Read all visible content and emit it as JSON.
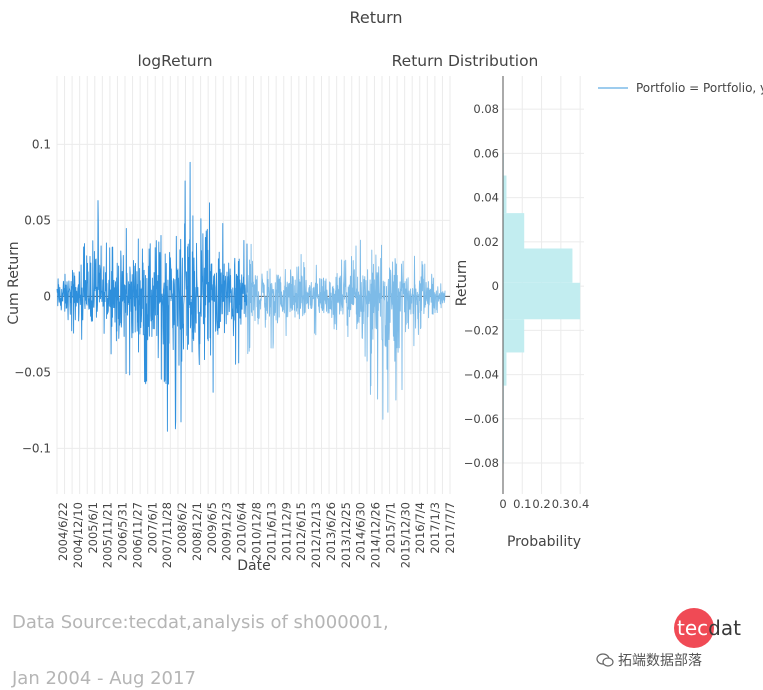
{
  "chart_data": {
    "title": "Return",
    "line_panel": {
      "type": "line",
      "title": "logReturn",
      "xlabel": "Date",
      "ylabel": "Cum Return",
      "ylim": [
        -0.13,
        0.145
      ],
      "yticks": [
        -0.1,
        -0.05,
        0,
        0.05,
        0.1
      ],
      "ytick_labels": [
        "−0.1",
        "−0.05",
        "0",
        "0.05",
        "0.1"
      ],
      "x_tick_labels": [
        "2004/6/22",
        "2004/12/10",
        "2005/6/1",
        "2005/11/21",
        "2006/5/31",
        "2006/11/27",
        "2007/6/1",
        "2007/11/28",
        "2008/6/2",
        "2008/12/1",
        "2009/6/5",
        "2009/12/3",
        "2010/6/4",
        "2010/12/8",
        "2011/6/13",
        "2011/12/9",
        "2012/6/15",
        "2012/12/13",
        "2013/6/26",
        "2013/12/25",
        "2014/6/30",
        "2014/12/26",
        "2015/7/1",
        "2015/12/30",
        "2016/7/4",
        "2017/1/3",
        "2017/7/7"
      ],
      "series_name": "Portfolio",
      "envelope": [
        {
          "t": 0.0,
          "hi": 0.02,
          "lo": -0.022
        },
        {
          "t": 0.04,
          "hi": 0.026,
          "lo": -0.025
        },
        {
          "t": 0.07,
          "hi": 0.038,
          "lo": -0.03
        },
        {
          "t": 0.1,
          "hi": 0.079,
          "lo": -0.03
        },
        {
          "t": 0.13,
          "hi": 0.034,
          "lo": -0.038
        },
        {
          "t": 0.17,
          "hi": 0.045,
          "lo": -0.055
        },
        {
          "t": 0.21,
          "hi": 0.058,
          "lo": -0.05
        },
        {
          "t": 0.25,
          "hi": 0.066,
          "lo": -0.07
        },
        {
          "t": 0.28,
          "hi": 0.075,
          "lo": -0.093
        },
        {
          "t": 0.31,
          "hi": 0.077,
          "lo": -0.088
        },
        {
          "t": 0.33,
          "hi": 0.088,
          "lo": -0.077
        },
        {
          "t": 0.35,
          "hi": 0.091,
          "lo": -0.08
        },
        {
          "t": 0.38,
          "hi": 0.08,
          "lo": -0.068
        },
        {
          "t": 0.41,
          "hi": 0.061,
          "lo": -0.065
        },
        {
          "t": 0.44,
          "hi": 0.042,
          "lo": -0.05
        },
        {
          "t": 0.48,
          "hi": 0.04,
          "lo": -0.042
        },
        {
          "t": 0.52,
          "hi": 0.035,
          "lo": -0.032
        },
        {
          "t": 0.56,
          "hi": 0.03,
          "lo": -0.035
        },
        {
          "t": 0.6,
          "hi": 0.033,
          "lo": -0.025
        },
        {
          "t": 0.64,
          "hi": 0.03,
          "lo": -0.03
        },
        {
          "t": 0.68,
          "hi": 0.028,
          "lo": -0.025
        },
        {
          "t": 0.72,
          "hi": 0.023,
          "lo": -0.025
        },
        {
          "t": 0.76,
          "hi": 0.03,
          "lo": -0.03
        },
        {
          "t": 0.8,
          "hi": 0.048,
          "lo": -0.06
        },
        {
          "t": 0.84,
          "hi": 0.056,
          "lo": -0.088
        },
        {
          "t": 0.88,
          "hi": 0.043,
          "lo": -0.074
        },
        {
          "t": 0.91,
          "hi": 0.028,
          "lo": -0.04
        },
        {
          "t": 0.94,
          "hi": 0.024,
          "lo": -0.022
        },
        {
          "t": 0.97,
          "hi": 0.014,
          "lo": -0.012
        },
        {
          "t": 1.0,
          "hi": 0.013,
          "lo": -0.012
        }
      ]
    },
    "histogram_panel": {
      "type": "bar",
      "orientation": "horizontal",
      "title": "Return Distribution",
      "xlabel": "Probability",
      "ylabel": "Return",
      "xlim": [
        0,
        0.42
      ],
      "ylim": [
        -0.094,
        0.095
      ],
      "xticks": [
        0,
        0.1,
        0.2,
        0.3,
        0.4
      ],
      "xtick_labels": [
        "0",
        "0.1",
        "0.2",
        "0.3",
        "0.4"
      ],
      "yticks": [
        -0.08,
        -0.06,
        -0.04,
        -0.02,
        0,
        0.02,
        0.04,
        0.06,
        0.08
      ],
      "ytick_labels": [
        "−0.08",
        "−0.06",
        "−0.04",
        "−0.02",
        "0",
        "0.02",
        "0.04",
        "0.06",
        "0.08"
      ],
      "bins": [
        {
          "lo": -0.08,
          "hi": -0.06,
          "p": 0.001
        },
        {
          "lo": -0.06,
          "hi": -0.045,
          "p": 0.003
        },
        {
          "lo": -0.045,
          "hi": -0.03,
          "p": 0.018
        },
        {
          "lo": -0.03,
          "hi": -0.015,
          "p": 0.11
        },
        {
          "lo": -0.015,
          "hi": 0.0015,
          "p": 0.4
        },
        {
          "lo": 0.0015,
          "hi": 0.017,
          "p": 0.36
        },
        {
          "lo": 0.017,
          "hi": 0.033,
          "p": 0.11
        },
        {
          "lo": 0.033,
          "hi": 0.05,
          "p": 0.018
        },
        {
          "lo": 0.05,
          "hi": 0.06,
          "p": 0.002
        }
      ]
    },
    "legend": {
      "label": "Portfolio = Portfolio, y",
      "placement": "top-right"
    },
    "colors": {
      "line": "#2e8fdc",
      "line_light": "#7dbbe8",
      "bar": "#c2edf0",
      "grid": "#ebebeb",
      "text": "#444444"
    }
  },
  "footer": {
    "source_line1": "Data Source:tecdat,analysis of sh000001,",
    "source_line2": "Jan 2004 - Aug 2017"
  },
  "logo": {
    "part1": "tec",
    "part2": "dat"
  },
  "watermark": {
    "icon": "wechat-icon",
    "text": "拓端数据部落"
  }
}
